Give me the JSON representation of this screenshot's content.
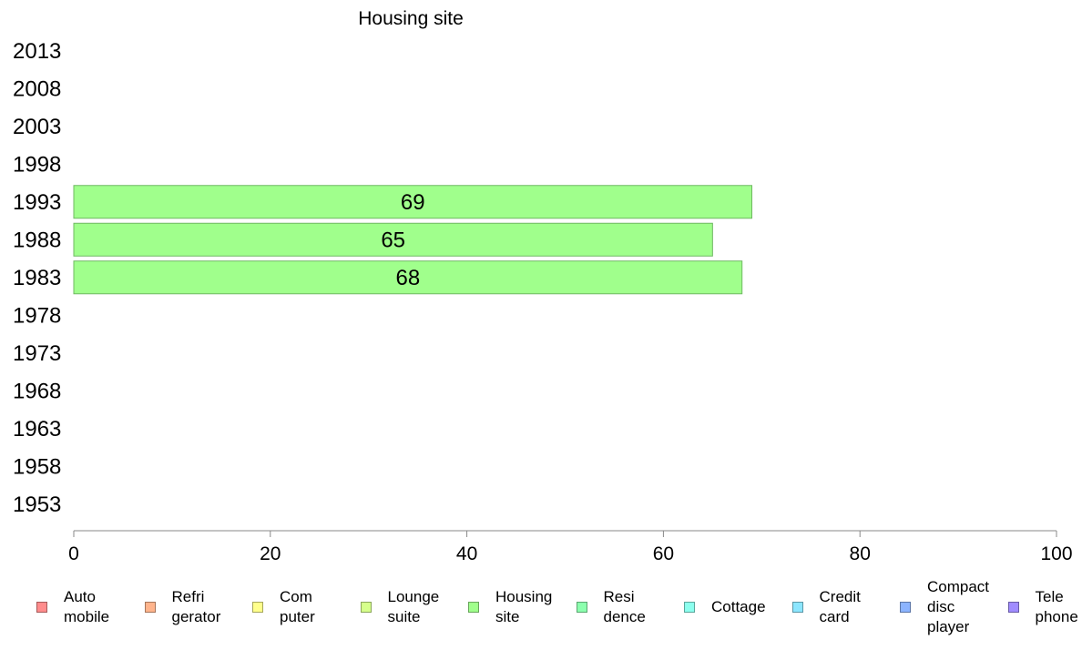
{
  "chart_data": {
    "type": "bar",
    "orientation": "horizontal",
    "title": "Housing site",
    "categories": [
      "1953",
      "1958",
      "1963",
      "1968",
      "1973",
      "1978",
      "1983",
      "1988",
      "1993",
      "1998",
      "2003",
      "2008",
      "2013"
    ],
    "series": [
      {
        "name": "Housing site",
        "color": "#a0ff8c",
        "values": [
          null,
          null,
          null,
          null,
          null,
          null,
          68,
          65,
          69,
          null,
          null,
          null,
          null
        ],
        "labels": [
          "",
          "",
          "",
          "",
          "",
          "",
          "68",
          "65",
          "69",
          "",
          "",
          "",
          ""
        ]
      }
    ],
    "xlim": [
      0,
      100
    ],
    "x_ticks": [
      "0",
      "20",
      "40",
      "60",
      "80",
      "100"
    ],
    "grid": false,
    "legend_position": "bottom"
  },
  "legend": [
    {
      "label": "Auto\nmobile",
      "color": "#ff8c8c"
    },
    {
      "label": "Refri\ngerator",
      "color": "#ffb48c"
    },
    {
      "label": "Com\nputer",
      "color": "#ffff8c"
    },
    {
      "label": "Lounge\nsuite",
      "color": "#d6ff8c"
    },
    {
      "label": "Housing\nsite",
      "color": "#a0ff8c"
    },
    {
      "label": "Resi\ndence",
      "color": "#8cffae"
    },
    {
      "label": "Cottage",
      "color": "#8cffee"
    },
    {
      "label": "Credit\ncard",
      "color": "#8ce6ff"
    },
    {
      "label": "Compact\ndisc\nplayer",
      "color": "#8cb4ff"
    },
    {
      "label": "Tele\nphone",
      "color": "#a08cff"
    }
  ]
}
